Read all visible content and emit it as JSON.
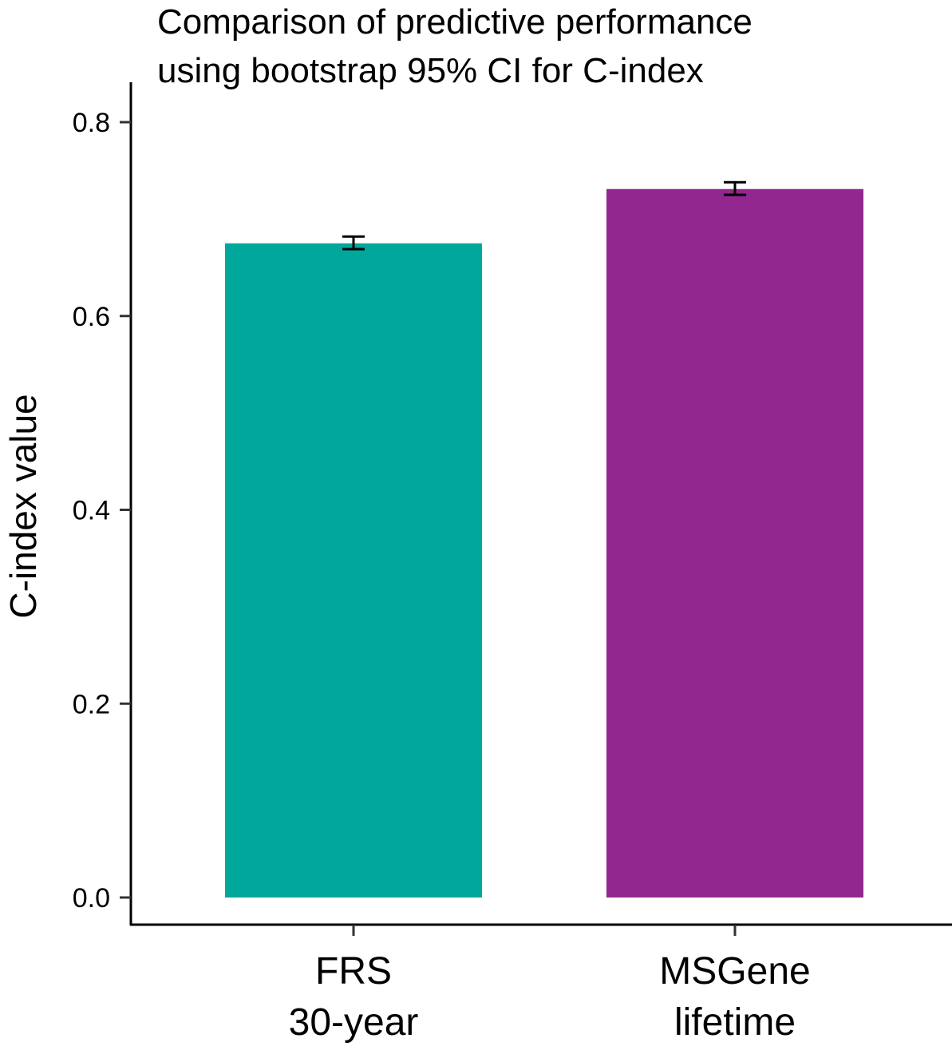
{
  "chart_data": {
    "type": "bar",
    "title_lines": [
      "Comparison of predictive performance",
      "using bootstrap 95% CI for C-index"
    ],
    "xlabel": "",
    "ylabel": "C-index value",
    "ylim": [
      0,
      0.83
    ],
    "yticks": [
      0.0,
      0.2,
      0.4,
      0.6,
      0.8
    ],
    "ytick_labels": [
      "0.0",
      "0.2",
      "0.4",
      "0.6",
      "0.8"
    ],
    "grid": false,
    "legend": "none",
    "categories": [
      {
        "lines": [
          "FRS",
          "30-year"
        ],
        "value": 0.675,
        "ci_low": 0.669,
        "ci_high": 0.682,
        "color": "#00A89C"
      },
      {
        "lines": [
          "MSGene",
          "lifetime"
        ],
        "value": 0.731,
        "ci_low": 0.725,
        "ci_high": 0.738,
        "color": "#92278F"
      }
    ]
  }
}
